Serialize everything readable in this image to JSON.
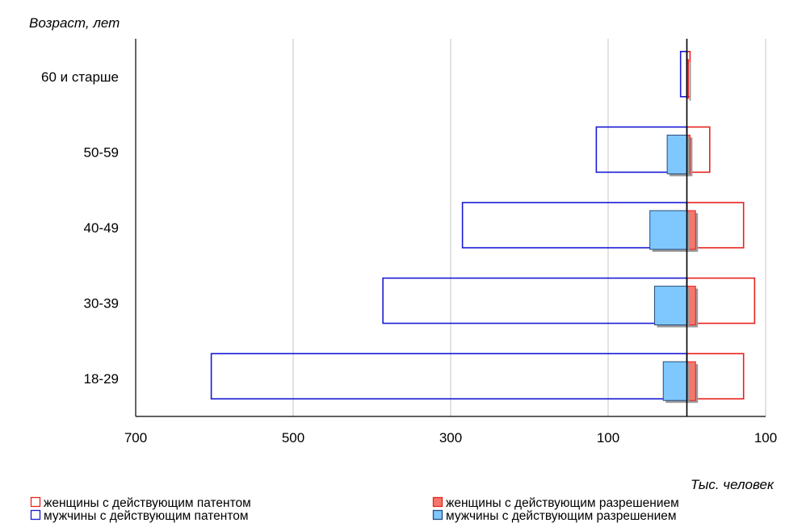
{
  "chart_data": {
    "type": "bar",
    "orientation": "horizontal-population-pyramid",
    "ylabel": "Возраст, лет",
    "xlabel": "Тыс. человек",
    "categories": [
      "18-29",
      "30-39",
      "40-49",
      "50-59",
      "60 и старше"
    ],
    "x_ticks": [
      {
        "value": -700,
        "label": "700"
      },
      {
        "value": -500,
        "label": "500"
      },
      {
        "value": -300,
        "label": "300"
      },
      {
        "value": -100,
        "label": "100"
      },
      {
        "value": 100,
        "label": "100"
      }
    ],
    "xlim": [
      -700,
      100
    ],
    "grid": "vertical",
    "legend_position": "bottom",
    "series": [
      {
        "name": "женщины  с действующим патентом",
        "side": "right",
        "style": "outline",
        "color": "#e8221c",
        "values": [
          72,
          86,
          72,
          29,
          4
        ]
      },
      {
        "name": "женщины  с действующим разрешением",
        "side": "right",
        "style": "filled",
        "color": "#e8221c",
        "fill": "#f4776e",
        "values": [
          11,
          11,
          11,
          4,
          2
        ]
      },
      {
        "name": "мужчины с действующим патентом",
        "side": "left",
        "style": "outline",
        "color": "#1a1ad6",
        "values": [
          604,
          386,
          285,
          115,
          8
        ]
      },
      {
        "name": "мужчины с действующим разрешением",
        "side": "left",
        "style": "filled",
        "color": "#2a4a7a",
        "fill": "#7ec8ff",
        "values": [
          30,
          41,
          47,
          25,
          0
        ]
      }
    ]
  }
}
